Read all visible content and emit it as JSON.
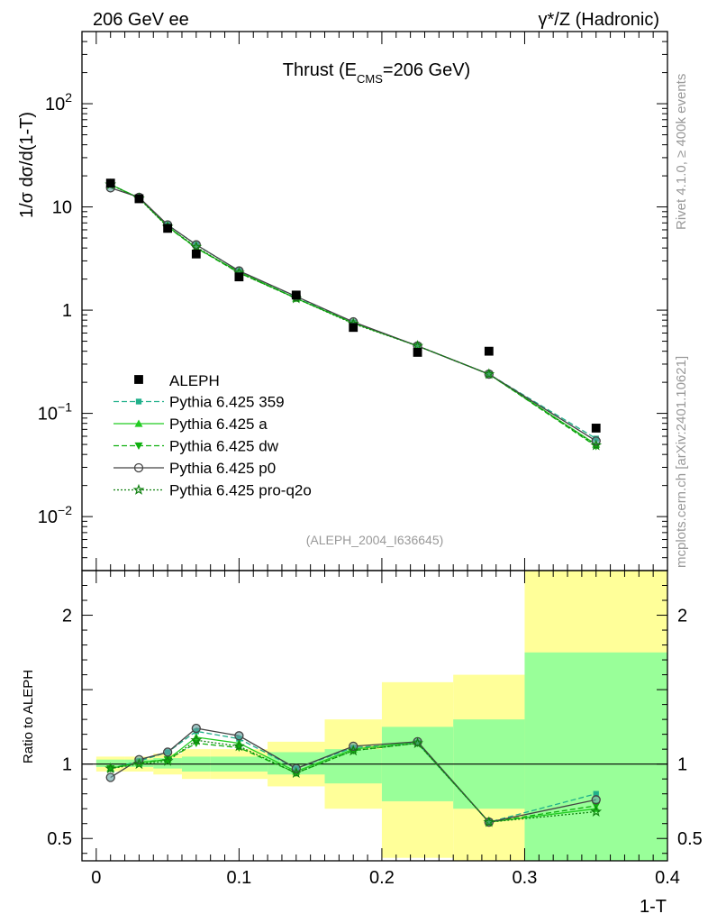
{
  "header": {
    "left": "206 GeV ee",
    "right": "γ*/Z (Hadronic)"
  },
  "side_labels": {
    "rivet": "Rivet 4.1.0, ≥ 400k events",
    "mcplots": "mcplots.cern.ch [arXiv:2401.10621]"
  },
  "chart_data": [
    {
      "type": "line",
      "title": "Thrust (E_CMS=206 GeV)",
      "title_parts": {
        "main": "Thrust (E",
        "sub": "CMS",
        "tail": "=206 GeV)"
      },
      "ylabel": "1/σ  dσ/d(1-T)",
      "xlabel": "1-T",
      "yscale": "log",
      "xlim": [
        -0.01,
        0.4
      ],
      "ylim": [
        0.003,
        500
      ],
      "y_ticks": [
        {
          "value": 0.01,
          "base": "10",
          "exp": "−2"
        },
        {
          "value": 0.1,
          "base": "10",
          "exp": "−1"
        },
        {
          "value": 1,
          "label": "1"
        },
        {
          "value": 10,
          "label": "10"
        },
        {
          "value": 100,
          "base": "10",
          "exp": "2"
        }
      ],
      "annotation": "(ALEPH_2004_I636645)",
      "x": [
        0.01,
        0.03,
        0.05,
        0.07,
        0.1,
        0.14,
        0.18,
        0.225,
        0.275,
        0.35
      ],
      "bin_edges": [
        0.0,
        0.02,
        0.04,
        0.06,
        0.08,
        0.12,
        0.16,
        0.2,
        0.25,
        0.3,
        0.4
      ],
      "data": {
        "name": "ALEPH",
        "values": [
          17.0,
          12.0,
          6.2,
          3.5,
          2.1,
          1.4,
          0.68,
          0.39,
          0.4,
          0.072
        ]
      },
      "series": [
        {
          "name": "Pythia 6.425 359",
          "color": "#20b08a",
          "dash": "6,3",
          "marker": "square",
          "values": [
            16.5,
            12.2,
            6.7,
            4.3,
            2.4,
            1.35,
            0.76,
            0.45,
            0.24,
            0.057
          ]
        },
        {
          "name": "Pythia 6.425 a",
          "color": "#22cc22",
          "dash": "",
          "marker": "triangle-up",
          "values": [
            16.5,
            12.2,
            6.5,
            4.0,
            2.35,
            1.3,
            0.75,
            0.45,
            0.24,
            0.05
          ]
        },
        {
          "name": "Pythia 6.425 dw",
          "color": "#10b010",
          "dash": "6,3",
          "marker": "triangle-down",
          "values": [
            16.5,
            12.2,
            6.4,
            4.0,
            2.3,
            1.3,
            0.75,
            0.45,
            0.24,
            0.048
          ]
        },
        {
          "name": "Pythia 6.425 p0",
          "color": "#444444",
          "dash": "",
          "marker": "circle-open",
          "values": [
            15.3,
            12.4,
            6.7,
            4.3,
            2.4,
            1.36,
            0.77,
            0.45,
            0.24,
            0.054
          ]
        },
        {
          "name": "Pythia 6.425 pro-q2o",
          "color": "#108010",
          "dash": "2,2",
          "marker": "star",
          "values": [
            16.5,
            12.1,
            6.4,
            4.1,
            2.3,
            1.3,
            0.74,
            0.45,
            0.24,
            0.049
          ]
        }
      ]
    },
    {
      "type": "line",
      "title": "",
      "ylabel": "Ratio to ALEPH",
      "xlabel": "1-T",
      "xlim": [
        -0.01,
        0.4
      ],
      "ylim": [
        0.35,
        2.3
      ],
      "y_ticks": [
        0.5,
        1,
        2
      ],
      "x_ticks": [
        0,
        0.1,
        0.2,
        0.3,
        0.4
      ],
      "x_tick_labels": [
        "0",
        "0.1",
        "0.2",
        "0.3",
        "0.4"
      ],
      "reference": 1,
      "bands": [
        {
          "x0": 0.0,
          "x1": 0.02,
          "stat_lo": 0.98,
          "stat_hi": 1.03,
          "tot_lo": 0.95,
          "tot_hi": 1.05
        },
        {
          "x0": 0.02,
          "x1": 0.04,
          "stat_lo": 0.98,
          "stat_hi": 1.03,
          "tot_lo": 0.95,
          "tot_hi": 1.05
        },
        {
          "x0": 0.04,
          "x1": 0.06,
          "stat_lo": 0.97,
          "stat_hi": 1.04,
          "tot_lo": 0.93,
          "tot_hi": 1.07
        },
        {
          "x0": 0.06,
          "x1": 0.08,
          "stat_lo": 0.95,
          "stat_hi": 1.05,
          "tot_lo": 0.9,
          "tot_hi": 1.1
        },
        {
          "x0": 0.08,
          "x1": 0.12,
          "stat_lo": 0.95,
          "stat_hi": 1.05,
          "tot_lo": 0.9,
          "tot_hi": 1.1
        },
        {
          "x0": 0.12,
          "x1": 0.16,
          "stat_lo": 0.93,
          "stat_hi": 1.08,
          "tot_lo": 0.85,
          "tot_hi": 1.15
        },
        {
          "x0": 0.16,
          "x1": 0.2,
          "stat_lo": 0.87,
          "stat_hi": 1.1,
          "tot_lo": 0.7,
          "tot_hi": 1.3
        },
        {
          "x0": 0.2,
          "x1": 0.25,
          "stat_lo": 0.75,
          "stat_hi": 1.25,
          "tot_lo": 0.37,
          "tot_hi": 1.55
        },
        {
          "x0": 0.25,
          "x1": 0.3,
          "stat_lo": 0.7,
          "stat_hi": 1.3,
          "tot_lo": 0.35,
          "tot_hi": 1.6
        },
        {
          "x0": 0.3,
          "x1": 0.4,
          "stat_lo": 0.35,
          "stat_hi": 1.75,
          "tot_lo": 0.35,
          "tot_hi": 2.3
        }
      ],
      "series": [
        {
          "name": "Pythia 6.425 359",
          "values": [
            0.97,
            1.02,
            1.08,
            1.22,
            1.17,
            0.97,
            1.11,
            1.14,
            0.61,
            0.8
          ]
        },
        {
          "name": "Pythia 6.425 a",
          "values": [
            0.97,
            1.01,
            1.03,
            1.18,
            1.14,
            0.95,
            1.1,
            1.15,
            0.61,
            0.7
          ]
        },
        {
          "name": "Pythia 6.425 dw",
          "values": [
            0.97,
            1.01,
            1.03,
            1.14,
            1.11,
            0.94,
            1.09,
            1.14,
            0.61,
            0.72
          ]
        },
        {
          "name": "Pythia 6.425 p0",
          "values": [
            0.91,
            1.03,
            1.08,
            1.24,
            1.19,
            0.97,
            1.12,
            1.15,
            0.61,
            0.76
          ]
        },
        {
          "name": "Pythia 6.425 pro-q2o",
          "values": [
            0.97,
            1.0,
            1.02,
            1.16,
            1.12,
            0.94,
            1.09,
            1.14,
            0.61,
            0.68
          ]
        }
      ]
    }
  ]
}
